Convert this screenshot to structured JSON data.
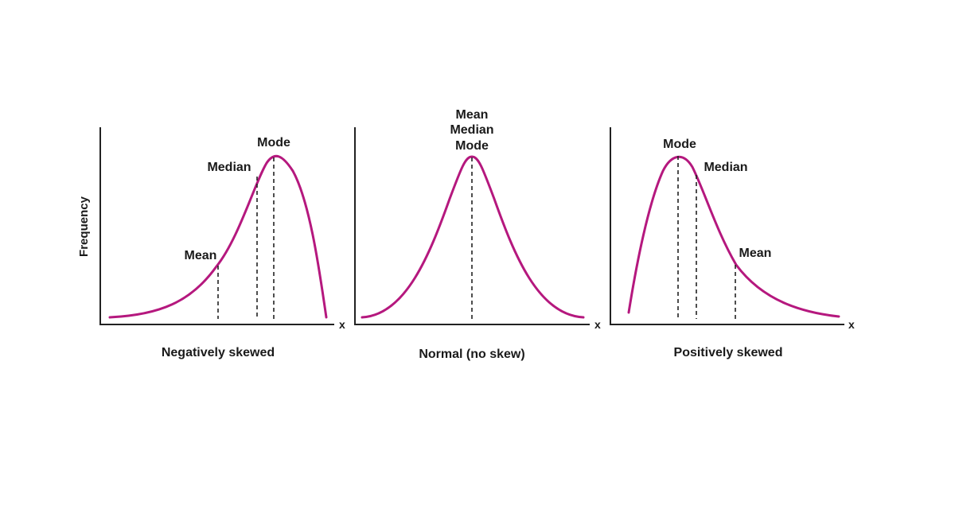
{
  "colors": {
    "curve": "#b5187e",
    "axis": "#222222",
    "text": "#1a1a1a",
    "background": "#ffffff"
  },
  "y_axis_label": "Frequency",
  "panels": [
    {
      "caption": "Negatively skewed",
      "x_axis_label": "x",
      "markers": [
        {
          "label": "Mean"
        },
        {
          "label": "Median"
        },
        {
          "label": "Mode"
        }
      ]
    },
    {
      "caption": "Normal (no skew)",
      "x_axis_label": "x",
      "stacked_labels": [
        "Mean",
        "Median",
        "Mode"
      ]
    },
    {
      "caption": "Positively skewed",
      "x_axis_label": "x",
      "markers": [
        {
          "label": "Mode"
        },
        {
          "label": "Median"
        },
        {
          "label": "Mean"
        }
      ]
    }
  ]
}
